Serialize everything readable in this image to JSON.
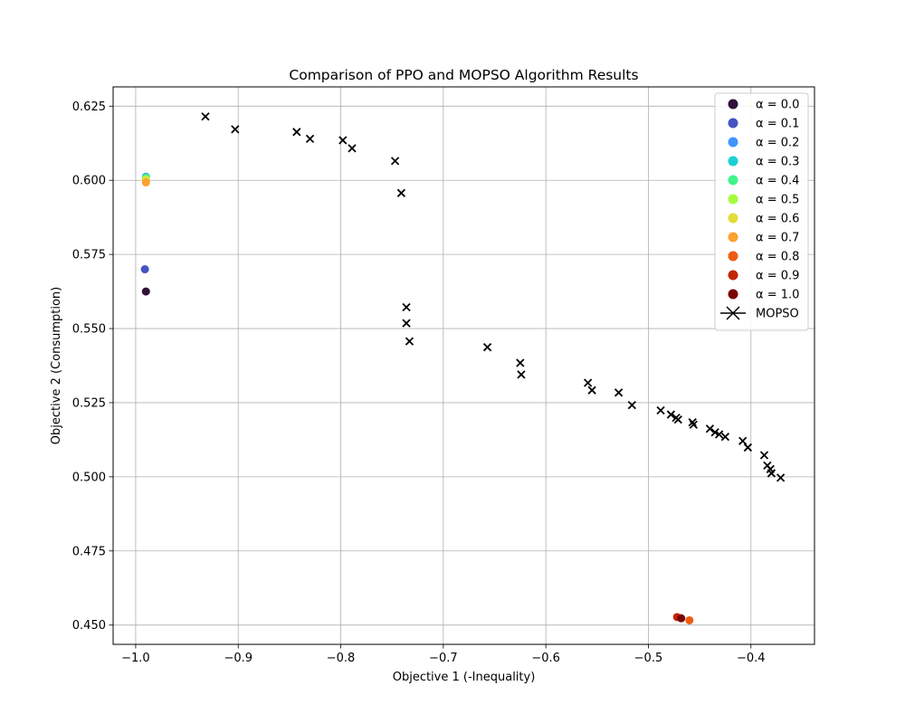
{
  "chart_data": {
    "type": "scatter",
    "title": "Comparison of PPO and MOPSO Algorithm Results",
    "xlabel": "Objective 1 (-Inequality)",
    "ylabel": "Objective 2 (Consumption)",
    "xlim": [
      -1.022,
      -0.338
    ],
    "ylim": [
      0.4435,
      0.6315
    ],
    "xticks": [
      -1.0,
      -0.9,
      -0.8,
      -0.7,
      -0.6,
      -0.5,
      -0.4
    ],
    "xtick_labels": [
      "−1.0",
      "−0.9",
      "−0.8",
      "−0.7",
      "−0.6",
      "−0.5",
      "−0.4"
    ],
    "yticks": [
      0.45,
      0.475,
      0.5,
      0.525,
      0.55,
      0.575,
      0.6,
      0.625
    ],
    "ytick_labels": [
      "0.450",
      "0.475",
      "0.500",
      "0.525",
      "0.550",
      "0.575",
      "0.600",
      "0.625"
    ],
    "grid": true,
    "legend_position": "top-right",
    "series": [
      {
        "name": "α = 0.0",
        "marker": "circle",
        "color": "#30123b",
        "points": [
          [
            -0.99,
            0.5625
          ]
        ]
      },
      {
        "name": "α = 0.1",
        "marker": "circle",
        "color": "#4454c4",
        "points": [
          [
            -0.991,
            0.57
          ]
        ]
      },
      {
        "name": "α = 0.2",
        "marker": "circle",
        "color": "#4294ff",
        "points": [
          [
            -0.99,
            0.6012
          ]
        ]
      },
      {
        "name": "α = 0.3",
        "marker": "circle",
        "color": "#1bcfd4",
        "points": [
          [
            -0.99,
            0.601
          ]
        ]
      },
      {
        "name": "α = 0.4",
        "marker": "circle",
        "color": "#3ff58c",
        "points": [
          [
            -0.99,
            0.6007
          ]
        ]
      },
      {
        "name": "α = 0.5",
        "marker": "circle",
        "color": "#a4fc3c",
        "points": [
          [
            -0.99,
            0.6004
          ]
        ]
      },
      {
        "name": "α = 0.6",
        "marker": "circle",
        "color": "#e2dc38",
        "points": [
          [
            -0.99,
            0.6
          ]
        ]
      },
      {
        "name": "α = 0.7",
        "marker": "circle",
        "color": "#fba22f",
        "points": [
          [
            -0.99,
            0.5993
          ]
        ]
      },
      {
        "name": "α = 0.8",
        "marker": "circle",
        "color": "#f05b12",
        "points": [
          [
            -0.46,
            0.4516
          ]
        ]
      },
      {
        "name": "α = 0.9",
        "marker": "circle",
        "color": "#c42503",
        "points": [
          [
            -0.472,
            0.4527
          ]
        ]
      },
      {
        "name": "α = 1.0",
        "marker": "circle",
        "color": "#7a0403",
        "points": [
          [
            -0.468,
            0.4523
          ]
        ]
      },
      {
        "name": "MOPSO",
        "marker": "x",
        "color": "#000000",
        "points": [
          [
            -0.932,
            0.6215
          ],
          [
            -0.903,
            0.6172
          ],
          [
            -0.843,
            0.6163
          ],
          [
            -0.83,
            0.614
          ],
          [
            -0.798,
            0.6135
          ],
          [
            -0.789,
            0.6108
          ],
          [
            -0.747,
            0.6065
          ],
          [
            -0.741,
            0.5957
          ],
          [
            -0.736,
            0.5572
          ],
          [
            -0.736,
            0.5518
          ],
          [
            -0.733,
            0.5457
          ],
          [
            -0.657,
            0.5437
          ],
          [
            -0.625,
            0.5384
          ],
          [
            -0.624,
            0.5345
          ],
          [
            -0.559,
            0.5317
          ],
          [
            -0.555,
            0.5292
          ],
          [
            -0.529,
            0.5284
          ],
          [
            -0.516,
            0.5242
          ],
          [
            -0.488,
            0.5224
          ],
          [
            -0.478,
            0.521
          ],
          [
            -0.473,
            0.5199
          ],
          [
            -0.471,
            0.5193
          ],
          [
            -0.457,
            0.5184
          ],
          [
            -0.456,
            0.5176
          ],
          [
            -0.44,
            0.5162
          ],
          [
            -0.435,
            0.515
          ],
          [
            -0.431,
            0.5143
          ],
          [
            -0.425,
            0.5135
          ],
          [
            -0.408,
            0.5121
          ],
          [
            -0.403,
            0.5099
          ],
          [
            -0.387,
            0.5073
          ],
          [
            -0.384,
            0.5038
          ],
          [
            -0.381,
            0.5026
          ],
          [
            -0.38,
            0.5012
          ],
          [
            -0.371,
            0.4997
          ]
        ]
      }
    ]
  }
}
